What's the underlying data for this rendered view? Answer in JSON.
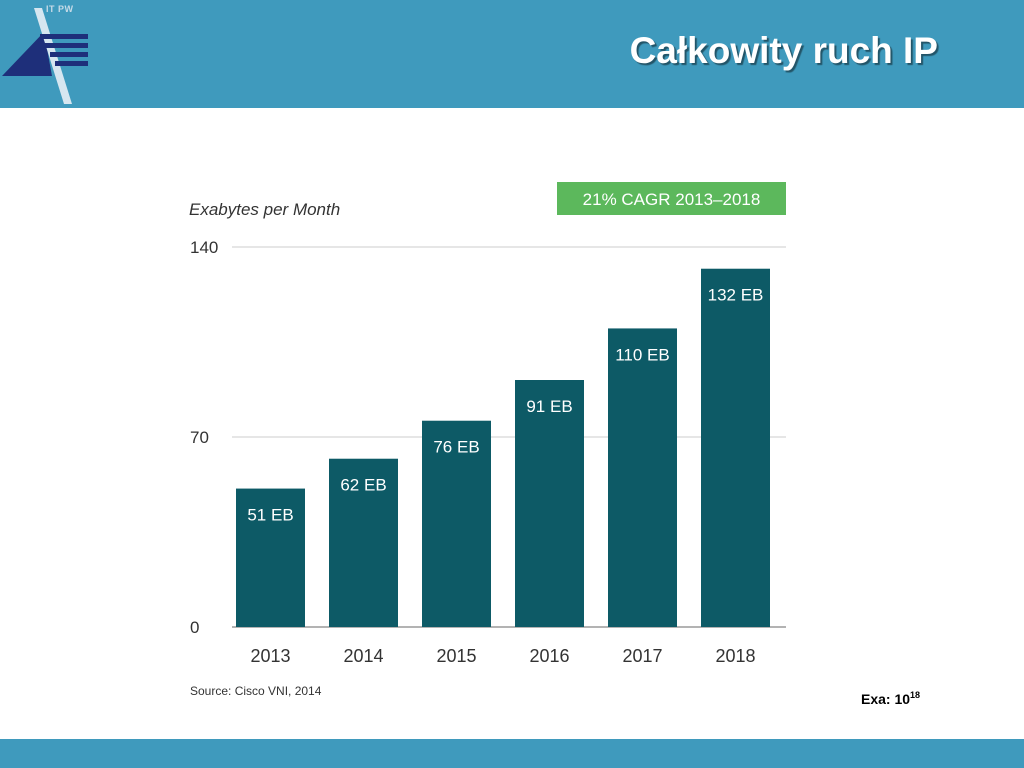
{
  "header": {
    "logo_text": "IT PW",
    "title": "Całkowity ruch IP",
    "bar_color": "#3f9abd"
  },
  "chart_data": {
    "type": "bar",
    "ylabel": "Exabytes per Month",
    "categories": [
      "2013",
      "2014",
      "2015",
      "2016",
      "2017",
      "2018"
    ],
    "values": [
      51,
      62,
      76,
      91,
      110,
      132
    ],
    "data_labels": [
      "51 EB",
      "62 EB",
      "76 EB",
      "91 EB",
      "110 EB",
      "132 EB"
    ],
    "yticks": [
      0,
      70,
      140
    ],
    "ylim": [
      0,
      140
    ],
    "grid": true,
    "bar_color": "#0d5a66",
    "badge": {
      "text": "21% CAGR 2013–2018",
      "color": "#5cb85c"
    },
    "source": "Source: Cisco VNI, 2014"
  },
  "note": {
    "base": "Exa: 10",
    "exponent": "18"
  }
}
